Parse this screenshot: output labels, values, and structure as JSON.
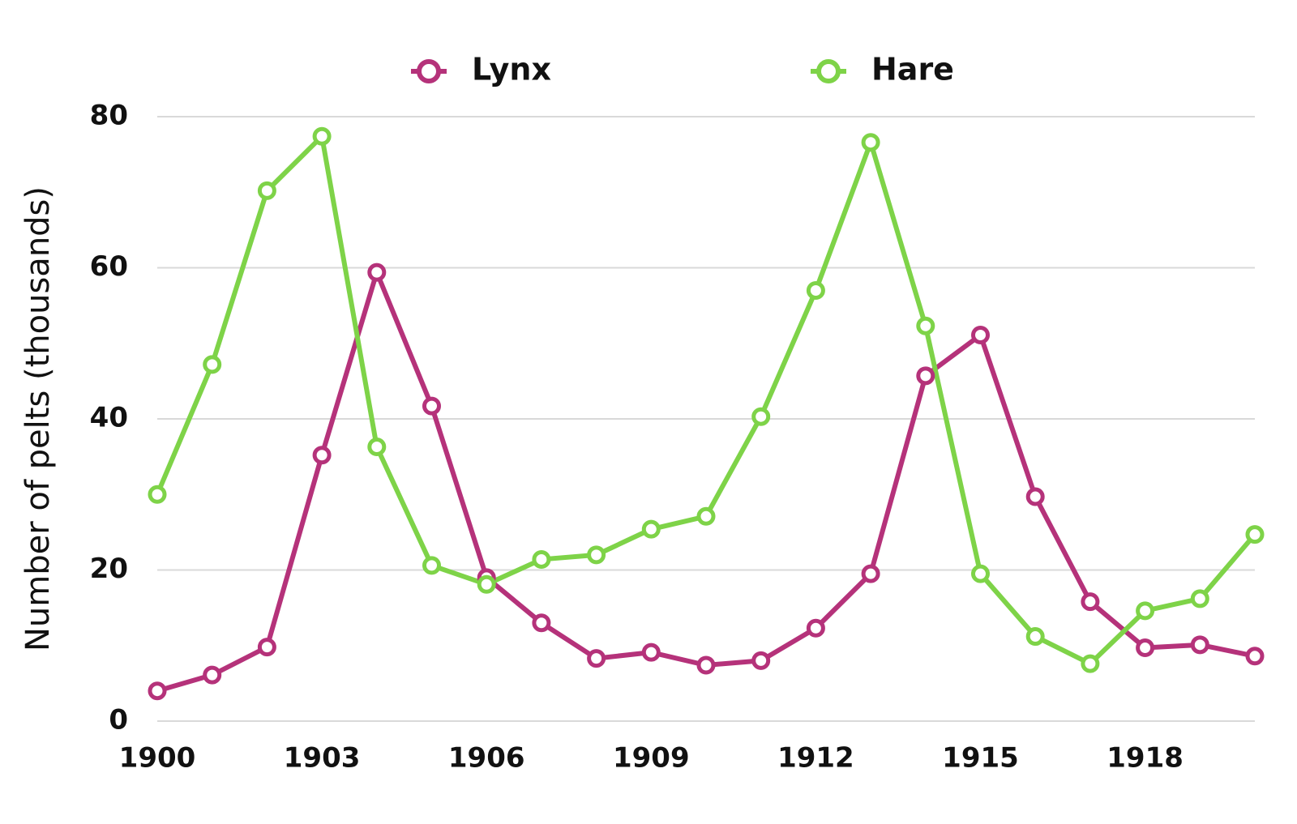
{
  "chart_data": {
    "type": "line",
    "y_label": "Number of pelts (thousands)",
    "x": [
      1900,
      1901,
      1902,
      1903,
      1904,
      1905,
      1906,
      1907,
      1908,
      1909,
      1910,
      1911,
      1912,
      1913,
      1914,
      1915,
      1916,
      1917,
      1918,
      1919,
      1920
    ],
    "series": [
      {
        "name": "Lynx",
        "color": "#b5327a",
        "values": [
          4,
          6.1,
          9.8,
          35.2,
          59.4,
          41.7,
          19,
          13,
          8.3,
          9.1,
          7.4,
          8,
          12.3,
          19.5,
          45.7,
          51.1,
          29.7,
          15.8,
          9.7,
          10.1,
          8.6
        ]
      },
      {
        "name": "Hare",
        "color": "#7ed348",
        "values": [
          30,
          47.2,
          70.2,
          77.4,
          36.3,
          20.6,
          18.1,
          21.4,
          22,
          25.4,
          27.1,
          40.3,
          57,
          76.6,
          52.3,
          19.5,
          11.2,
          7.6,
          14.6,
          16.2,
          24.7
        ]
      }
    ],
    "xlim": [
      1900,
      1920
    ],
    "xticks": [
      1900,
      1903,
      1906,
      1909,
      1912,
      1915,
      1918
    ],
    "ylim": [
      0,
      80
    ],
    "yticks": [
      0,
      20,
      40,
      60,
      80
    ],
    "grid": true,
    "legend": "top"
  }
}
